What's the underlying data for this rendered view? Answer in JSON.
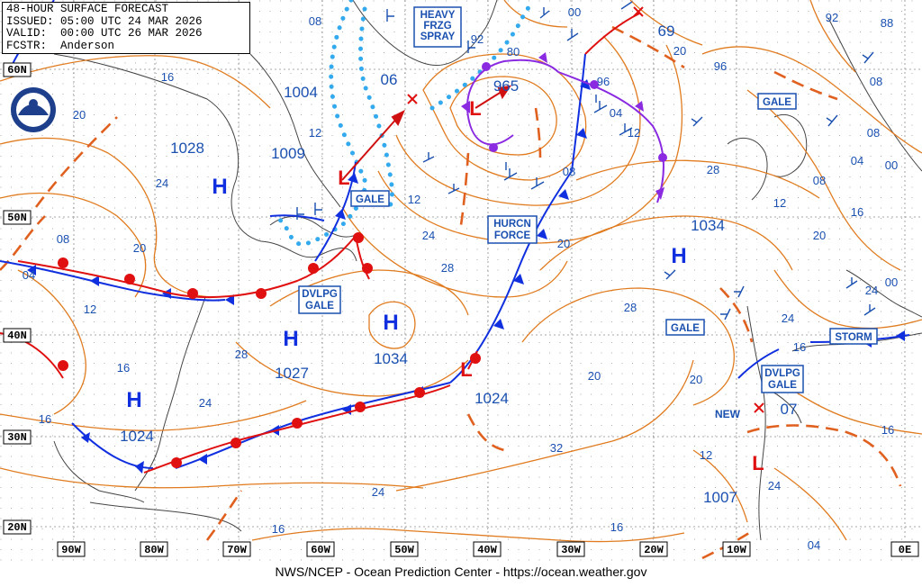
{
  "header": {
    "line1": "48-HOUR SURFACE FORECAST",
    "line2": "ISSUED: 05:00 UTC 24 MAR 2026",
    "line3": "VALID:  00:00 UTC 26 MAR 2026",
    "line4": "FCSTR:  Anderson"
  },
  "footer": {
    "text": "NWS/NCEP - Ocean Prediction Center - https://ocean.weather.gov"
  },
  "logo": {
    "name": "NOAA",
    "icon": "noaa-logo"
  },
  "axis": {
    "longitude_labels": [
      "90W",
      "80W",
      "70W",
      "60W",
      "50W",
      "40W",
      "30W",
      "20W",
      "10W",
      "0E"
    ],
    "latitude_labels": [
      "60N",
      "50N",
      "40N",
      "30N",
      "20N"
    ]
  },
  "pressure_centers": {
    "highs": [
      {
        "symbol": "H",
        "value": "1028"
      },
      {
        "symbol": "H",
        "value": "1027"
      },
      {
        "symbol": "H",
        "value": "1034"
      },
      {
        "symbol": "H",
        "value": "1024"
      },
      {
        "symbol": "H",
        "value": "1034"
      }
    ],
    "lows": [
      {
        "symbol": "L",
        "value": "1004"
      },
      {
        "symbol": "L",
        "value": "1009"
      },
      {
        "symbol": "L",
        "value": "965"
      },
      {
        "symbol": "L",
        "value": "1024"
      },
      {
        "symbol": "L",
        "value": "1007"
      }
    ],
    "small_values": [
      "06",
      "69",
      "07"
    ]
  },
  "warnings": [
    "HEAVY FRZG SPRAY",
    "GALE",
    "GALE",
    "HURCN FORCE",
    "DVLPG GALE",
    "GALE",
    "STORM",
    "DVLPG GALE"
  ],
  "annotations": {
    "new_label": "NEW"
  },
  "isobar_labels": [
    "08",
    "16",
    "20",
    "24",
    "12",
    "08",
    "04",
    "16",
    "12",
    "20",
    "16",
    "24",
    "28",
    "24",
    "28",
    "32",
    "28",
    "20",
    "24",
    "20",
    "16",
    "16",
    "00",
    "80",
    "92",
    "96",
    "88",
    "04",
    "12",
    "08",
    "16",
    "20",
    "96",
    "92",
    "08",
    "04",
    "00",
    "08",
    "24",
    "12",
    "16",
    "08",
    "20",
    "28",
    "04",
    "12",
    "24",
    "16",
    "04",
    "08",
    "20"
  ],
  "colors": {
    "isobar": "#e07b1f",
    "cold_front": "#1030e0",
    "warm_front": "#e01010",
    "occluded_front": "#8a2be2",
    "ice_edge": "#33aaee",
    "label_blue": "#1a50b0",
    "land": "#444444",
    "grid": "#8c8c8c"
  }
}
